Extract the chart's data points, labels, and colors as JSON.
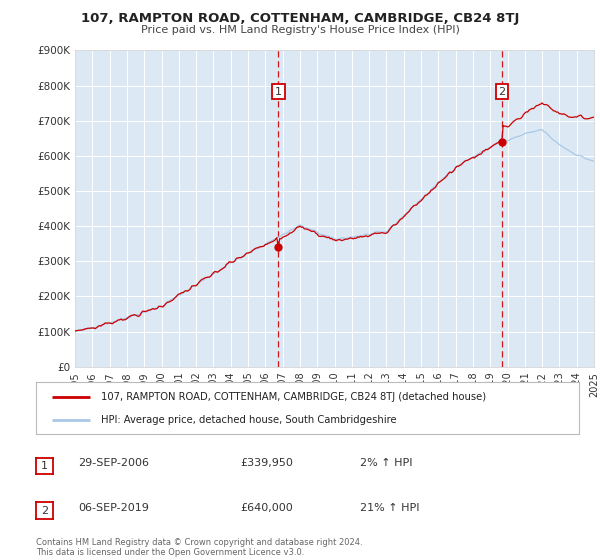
{
  "title": "107, RAMPTON ROAD, COTTENHAM, CAMBRIDGE, CB24 8TJ",
  "subtitle": "Price paid vs. HM Land Registry's House Price Index (HPI)",
  "legend_line1": "107, RAMPTON ROAD, COTTENHAM, CAMBRIDGE, CB24 8TJ (detached house)",
  "legend_line2": "HPI: Average price, detached house, South Cambridgeshire",
  "footnote1": "Contains HM Land Registry data © Crown copyright and database right 2024.",
  "footnote2": "This data is licensed under the Open Government Licence v3.0.",
  "marker1_date": "29-SEP-2006",
  "marker1_price": "£339,950",
  "marker1_hpi": "2% ↑ HPI",
  "marker2_date": "06-SEP-2019",
  "marker2_price": "£640,000",
  "marker2_hpi": "21% ↑ HPI",
  "marker1_x": 2006.75,
  "marker1_y": 339950,
  "marker2_x": 2019.68,
  "marker2_y": 640000,
  "red_color": "#cc0000",
  "blue_color": "#a8c8e8",
  "plot_bg": "#dce9f5",
  "fig_bg": "#ffffff",
  "grid_color": "#ffffff",
  "ylim": [
    0,
    900000
  ],
  "xlim": [
    1995,
    2025
  ],
  "yticks": [
    0,
    100000,
    200000,
    300000,
    400000,
    500000,
    600000,
    700000,
    800000,
    900000
  ],
  "ytick_labels": [
    "£0",
    "£100K",
    "£200K",
    "£300K",
    "£400K",
    "£500K",
    "£600K",
    "£700K",
    "£800K",
    "£900K"
  ],
  "xticks": [
    1995,
    1996,
    1997,
    1998,
    1999,
    2000,
    2001,
    2002,
    2003,
    2004,
    2005,
    2006,
    2007,
    2008,
    2009,
    2010,
    2011,
    2012,
    2013,
    2014,
    2015,
    2016,
    2017,
    2018,
    2019,
    2020,
    2021,
    2022,
    2023,
    2024,
    2025
  ]
}
